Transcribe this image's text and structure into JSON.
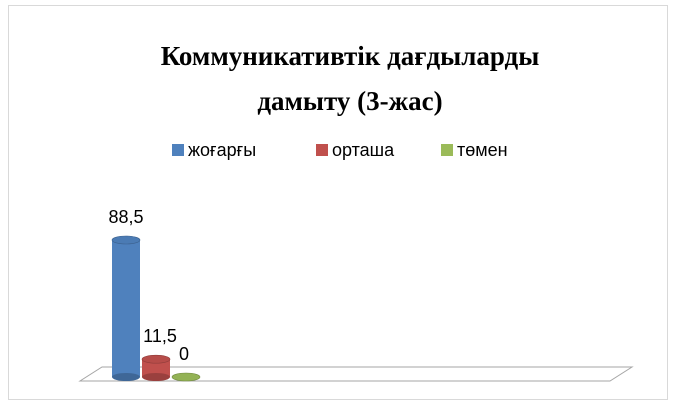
{
  "chart_data": {
    "type": "bar3d",
    "title": "Коммуникативтік дағдыларды дамыту (3-жас)",
    "categories": [
      null
    ],
    "series": [
      {
        "name": "жоғарғы",
        "color": "#4f81bd",
        "values": [
          88.5
        ],
        "value_labels": [
          "88,5"
        ]
      },
      {
        "name": "орташа",
        "color": "#c0504d",
        "values": [
          11.5
        ],
        "value_labels": [
          "11,5"
        ]
      },
      {
        "name": "төмен",
        "color": "#9bbb59",
        "values": [
          0
        ],
        "value_labels": [
          "0"
        ]
      }
    ],
    "legend": "top"
  }
}
